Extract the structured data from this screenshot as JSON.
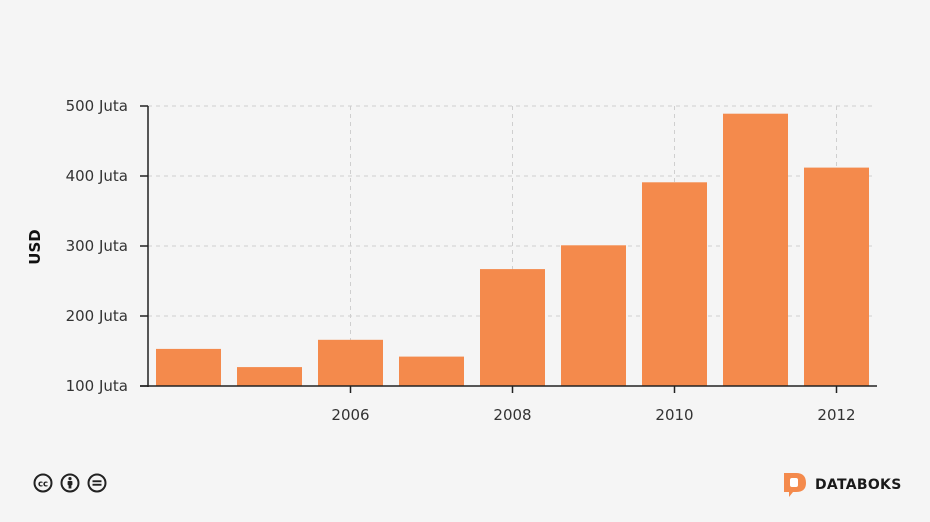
{
  "chart_data": {
    "type": "bar",
    "x": [
      2004,
      2005,
      2006,
      2007,
      2008,
      2009,
      2010,
      2011,
      2012
    ],
    "values": [
      153,
      127,
      166,
      142,
      267,
      301,
      391,
      489,
      412
    ],
    "ylabel": "USD",
    "ylim": [
      100,
      500
    ],
    "yticks": [
      100,
      200,
      300,
      400,
      500
    ],
    "ytick_labels": [
      "100 Juta",
      "200 Juta",
      "300 Juta",
      "400 Juta",
      "500 Juta"
    ],
    "xticks": [
      2006,
      2008,
      2010,
      2012
    ],
    "xtick_labels": [
      "2006",
      "2008",
      "2010",
      "2012"
    ],
    "grid": true,
    "bar_color": "#f48a4c"
  },
  "footer": {
    "license_icons": [
      "creative-commons-icon",
      "attribution-icon",
      "no-derivatives-icon"
    ],
    "brand": "DATABOKS",
    "brand_color": "#f48a4c"
  }
}
